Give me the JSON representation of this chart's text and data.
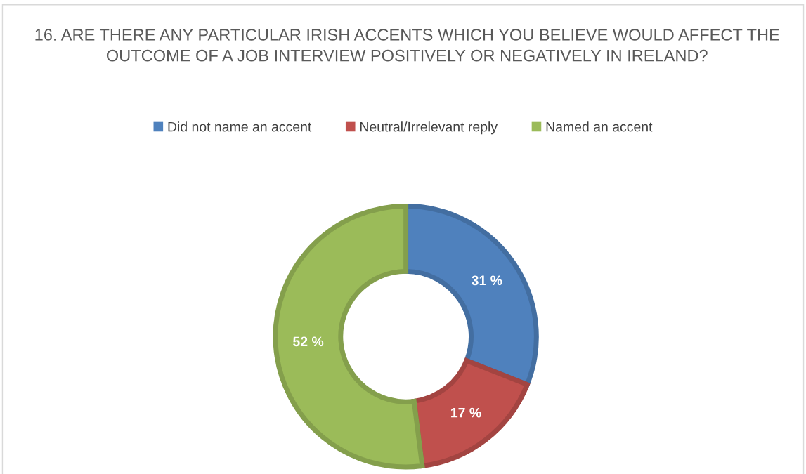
{
  "chart_data": {
    "type": "donut",
    "title": "16. ARE THERE ANY PARTICULAR IRISH ACCENTS WHICH YOU BELIEVE WOULD AFFECT THE OUTCOME OF A JOB INTERVIEW POSITIVELY OR NEGATIVELY IN IRELAND?",
    "categories": [
      "Did not name an accent",
      "Neutral/Irrelevant reply",
      "Named an accent"
    ],
    "values": [
      31,
      17,
      52
    ],
    "colors": [
      "#4f81bd",
      "#c0504d",
      "#9bbb59"
    ],
    "value_labels": [
      "31 %",
      "17 %",
      "52 %"
    ],
    "legend": "top"
  }
}
